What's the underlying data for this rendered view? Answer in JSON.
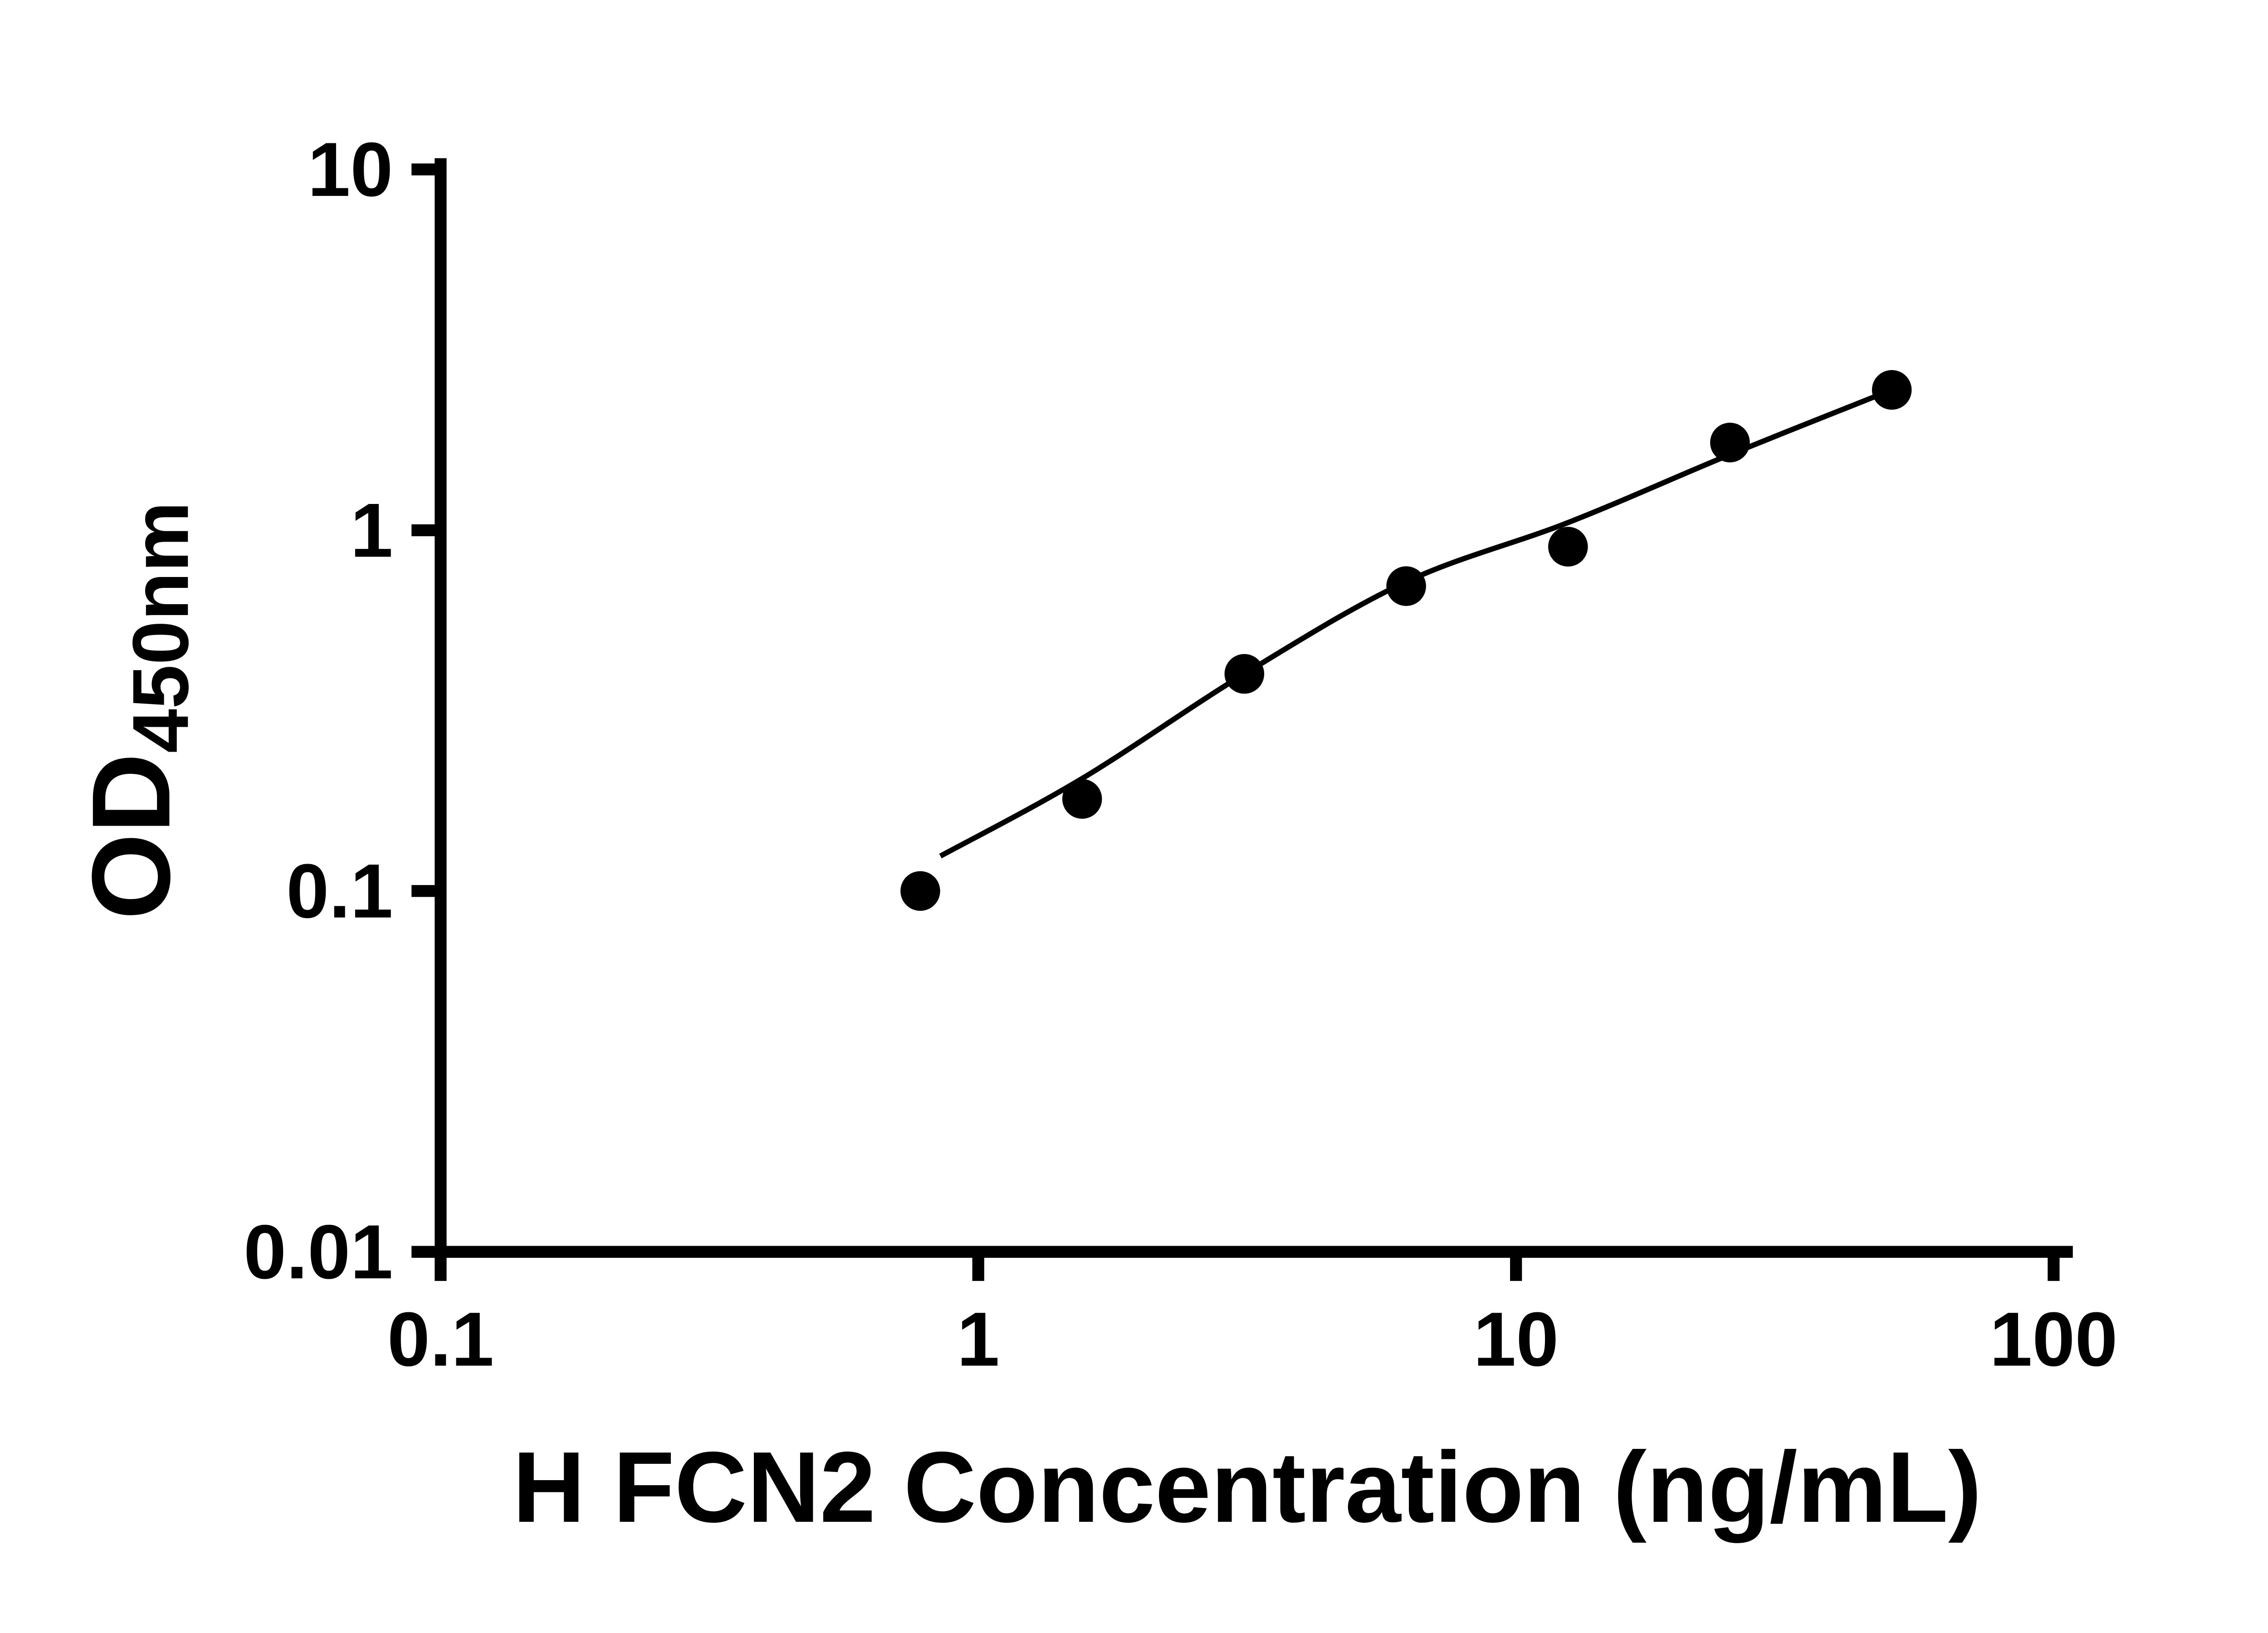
{
  "chart_data": {
    "type": "scatter",
    "title": "",
    "xlabel": "H FCN2 Concentration (ng/mL)",
    "ylabel_parts": [
      {
        "text": "OD",
        "sub": false
      },
      {
        "text": "450nm",
        "sub": true
      }
    ],
    "x_scale": "log",
    "y_scale": "log",
    "xlim": [
      0.1,
      100
    ],
    "ylim": [
      0.01,
      10
    ],
    "x_ticks": [
      {
        "value": 0.1,
        "label": "0.1"
      },
      {
        "value": 1,
        "label": "1"
      },
      {
        "value": 10,
        "label": "10"
      },
      {
        "value": 100,
        "label": "100"
      }
    ],
    "y_ticks": [
      {
        "value": 0.01,
        "label": "0.01"
      },
      {
        "value": 0.1,
        "label": "0.1"
      },
      {
        "value": 1,
        "label": "1"
      },
      {
        "value": 10,
        "label": "10"
      }
    ],
    "points": [
      {
        "x": 0.78,
        "y": 0.1
      },
      {
        "x": 1.56,
        "y": 0.18
      },
      {
        "x": 3.125,
        "y": 0.4
      },
      {
        "x": 6.25,
        "y": 0.7
      },
      {
        "x": 12.5,
        "y": 0.9
      },
      {
        "x": 25,
        "y": 1.75
      },
      {
        "x": 50,
        "y": 2.45
      }
    ],
    "fit_curve": [
      {
        "x": 0.85,
        "y": 0.125
      },
      {
        "x": 1.56,
        "y": 0.205
      },
      {
        "x": 3.125,
        "y": 0.4
      },
      {
        "x": 6.25,
        "y": 0.72
      },
      {
        "x": 12.5,
        "y": 1.05
      },
      {
        "x": 25,
        "y": 1.62
      },
      {
        "x": 50,
        "y": 2.45
      }
    ],
    "grid": false,
    "legend": null,
    "marker_color": "#000000",
    "line_color": "#000000",
    "axis_color": "#000000",
    "background_color": "#ffffff"
  }
}
